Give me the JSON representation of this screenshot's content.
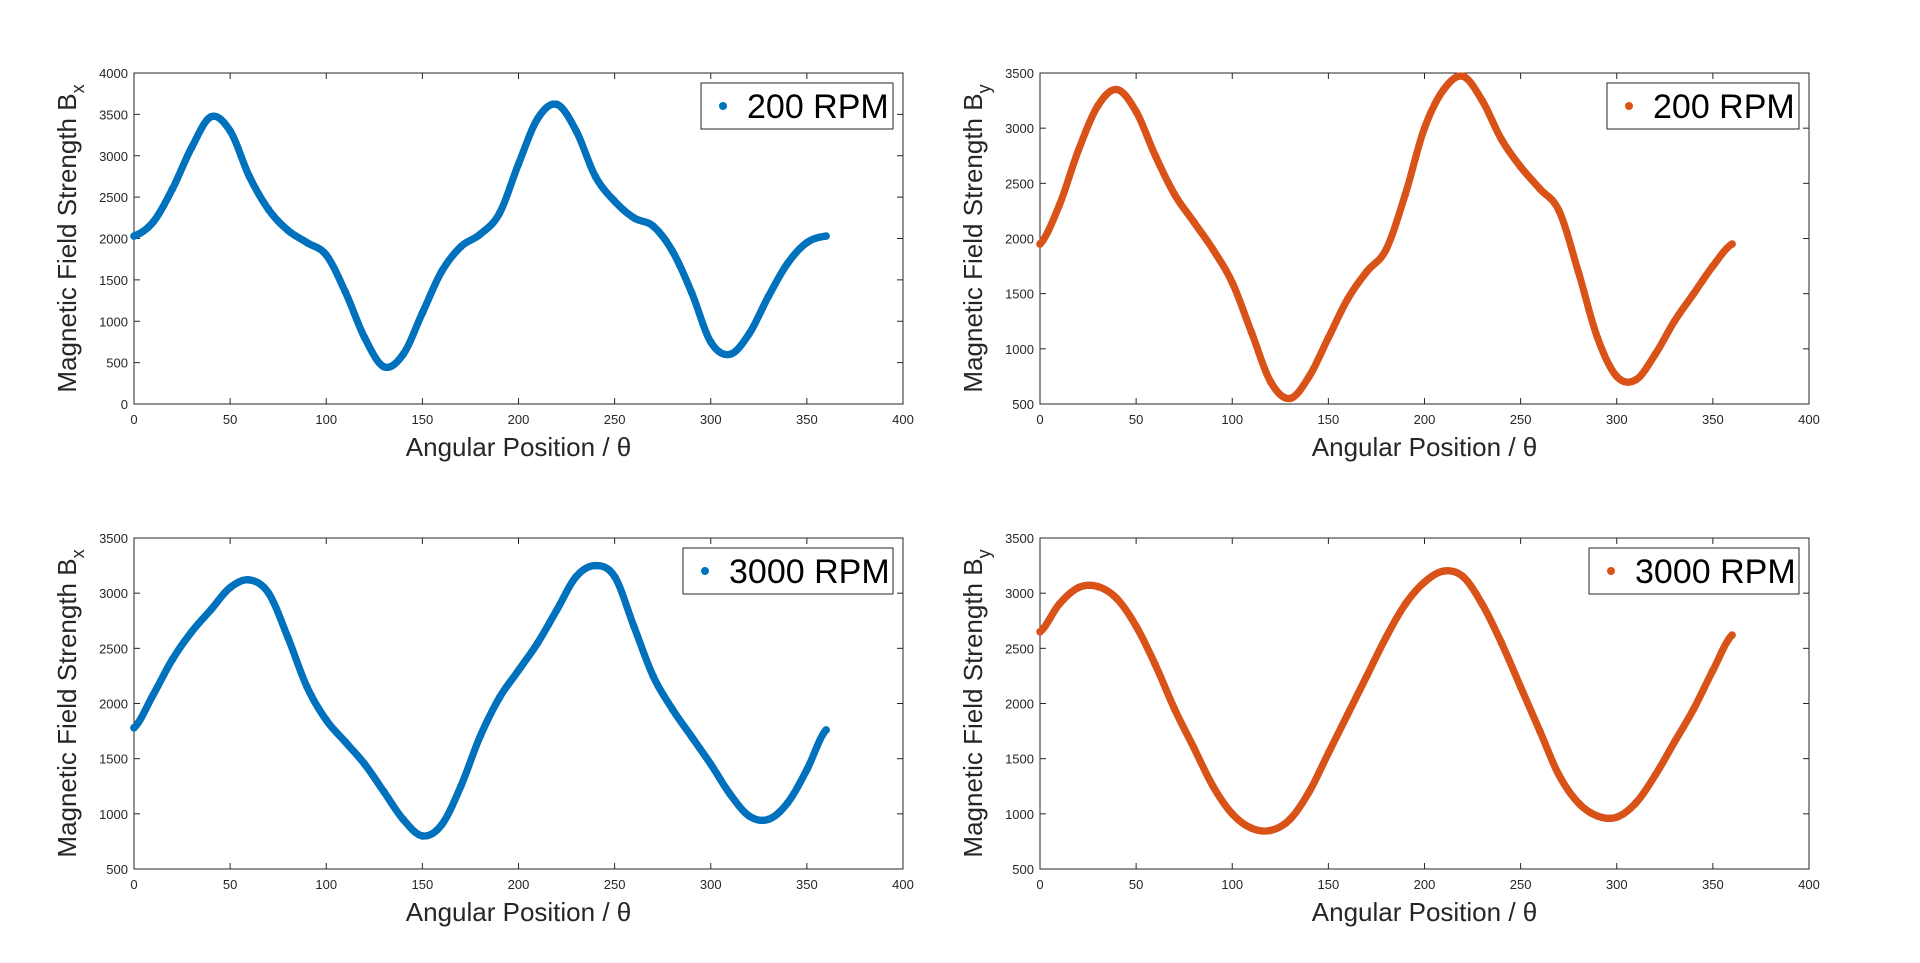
{
  "chart_data": [
    {
      "type": "scatter",
      "xlabel": "Angular Position / θ",
      "ylabel": "Magnetic Field Strength B",
      "ylabel_sub": "x",
      "xlim": [
        0,
        400
      ],
      "ylim": [
        0,
        4000
      ],
      "xticks": [
        0,
        50,
        100,
        150,
        200,
        250,
        300,
        350,
        400
      ],
      "yticks": [
        0,
        500,
        1000,
        1500,
        2000,
        2500,
        3000,
        3500,
        4000
      ],
      "legend_position": "top-right",
      "grid": false,
      "series": [
        {
          "name": "200 RPM",
          "color": "#0072BD",
          "x": [
            0,
            10,
            20,
            30,
            40,
            50,
            60,
            70,
            80,
            90,
            100,
            110,
            120,
            130,
            140,
            150,
            160,
            170,
            180,
            190,
            200,
            210,
            220,
            230,
            240,
            250,
            260,
            270,
            280,
            290,
            300,
            310,
            320,
            330,
            340,
            350,
            360
          ],
          "y": [
            2030,
            2200,
            2600,
            3100,
            3470,
            3300,
            2750,
            2350,
            2100,
            1950,
            1800,
            1350,
            800,
            450,
            600,
            1100,
            1600,
            1900,
            2050,
            2300,
            2900,
            3450,
            3620,
            3300,
            2750,
            2450,
            2250,
            2150,
            1850,
            1350,
            750,
            600,
            850,
            1300,
            1700,
            1950,
            2030
          ]
        }
      ]
    },
    {
      "type": "scatter",
      "xlabel": "Angular Position / θ",
      "ylabel": "Magnetic Field Strength B",
      "ylabel_sub": "y",
      "xlim": [
        0,
        400
      ],
      "ylim": [
        500,
        3500
      ],
      "xticks": [
        0,
        50,
        100,
        150,
        200,
        250,
        300,
        350,
        400
      ],
      "yticks": [
        500,
        1000,
        1500,
        2000,
        2500,
        3000,
        3500
      ],
      "legend_position": "top-right",
      "grid": false,
      "series": [
        {
          "name": "200 RPM",
          "color": "#D95319",
          "x": [
            0,
            10,
            20,
            30,
            40,
            50,
            60,
            70,
            80,
            90,
            100,
            110,
            120,
            130,
            140,
            150,
            160,
            170,
            180,
            190,
            200,
            210,
            220,
            230,
            240,
            250,
            260,
            270,
            280,
            290,
            300,
            310,
            320,
            330,
            340,
            350,
            360
          ],
          "y": [
            1950,
            2300,
            2800,
            3200,
            3350,
            3150,
            2750,
            2400,
            2150,
            1900,
            1600,
            1150,
            700,
            550,
            750,
            1100,
            1450,
            1700,
            1900,
            2400,
            3000,
            3350,
            3470,
            3250,
            2900,
            2650,
            2450,
            2250,
            1700,
            1100,
            750,
            720,
            950,
            1250,
            1500,
            1750,
            1950
          ]
        }
      ]
    },
    {
      "type": "scatter",
      "xlabel": "Angular Position / θ",
      "ylabel": "Magnetic Field Strength B",
      "ylabel_sub": "x",
      "xlim": [
        0,
        400
      ],
      "ylim": [
        500,
        3500
      ],
      "xticks": [
        0,
        50,
        100,
        150,
        200,
        250,
        300,
        350,
        400
      ],
      "yticks": [
        500,
        1000,
        1500,
        2000,
        2500,
        3000,
        3500
      ],
      "legend_position": "top-right",
      "grid": false,
      "series": [
        {
          "name": "3000 RPM",
          "color": "#0072BD",
          "x": [
            0,
            10,
            20,
            30,
            40,
            50,
            60,
            70,
            80,
            90,
            100,
            110,
            120,
            130,
            140,
            150,
            160,
            170,
            180,
            190,
            200,
            210,
            220,
            230,
            240,
            250,
            260,
            270,
            280,
            290,
            300,
            310,
            320,
            330,
            340,
            350,
            360
          ],
          "y": [
            1780,
            2080,
            2400,
            2650,
            2850,
            3050,
            3120,
            3000,
            2600,
            2150,
            1850,
            1650,
            1450,
            1200,
            950,
            800,
            900,
            1250,
            1700,
            2050,
            2300,
            2550,
            2850,
            3150,
            3250,
            3150,
            2700,
            2250,
            1950,
            1700,
            1450,
            1180,
            980,
            950,
            1100,
            1400,
            1760
          ]
        }
      ]
    },
    {
      "type": "scatter",
      "xlabel": "Angular Position / θ",
      "ylabel": "Magnetic Field Strength B",
      "ylabel_sub": "y",
      "xlim": [
        0,
        400
      ],
      "ylim": [
        500,
        3500
      ],
      "xticks": [
        0,
        50,
        100,
        150,
        200,
        250,
        300,
        350,
        400
      ],
      "yticks": [
        500,
        1000,
        1500,
        2000,
        2500,
        3000,
        3500
      ],
      "legend_position": "top-right",
      "grid": false,
      "series": [
        {
          "name": "3000 RPM",
          "color": "#D95319",
          "x": [
            0,
            10,
            20,
            30,
            40,
            50,
            60,
            70,
            80,
            90,
            100,
            110,
            120,
            130,
            140,
            150,
            160,
            170,
            180,
            190,
            200,
            210,
            220,
            230,
            240,
            250,
            260,
            270,
            280,
            290,
            300,
            310,
            320,
            330,
            340,
            350,
            360
          ],
          "y": [
            2650,
            2900,
            3050,
            3060,
            2950,
            2700,
            2350,
            1950,
            1600,
            1250,
            1000,
            870,
            850,
            950,
            1200,
            1550,
            1900,
            2250,
            2600,
            2900,
            3100,
            3200,
            3150,
            2900,
            2550,
            2150,
            1750,
            1350,
            1100,
            980,
            970,
            1100,
            1350,
            1650,
            1950,
            2300,
            2620
          ]
        }
      ]
    }
  ]
}
